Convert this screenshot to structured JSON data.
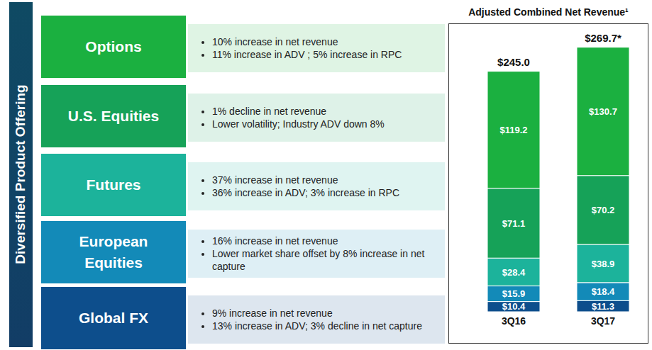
{
  "chart_data": {
    "type": "bar",
    "title": "Adjusted Combined Net Revenue¹",
    "categories": [
      "3Q16",
      "3Q17"
    ],
    "stacked": true,
    "data_labels": true,
    "grid": false,
    "tick_labels": "x",
    "ylim": [
      0,
      270
    ],
    "series": [
      {
        "name": "Global FX",
        "color": "#0d4e8c",
        "values": [
          10.4,
          11.3
        ],
        "value_labels": [
          "$10.4",
          "$11.3"
        ]
      },
      {
        "name": "European Equities",
        "color": "#138ab8",
        "values": [
          15.9,
          18.4
        ],
        "value_labels": [
          "$15.9",
          "$18.4"
        ]
      },
      {
        "name": "Futures",
        "color": "#1cb39b",
        "values": [
          28.4,
          38.9
        ],
        "value_labels": [
          "$28.4",
          "$38.9"
        ]
      },
      {
        "name": "U.S. Equities",
        "color": "#16a258",
        "values": [
          71.1,
          70.2
        ],
        "value_labels": [
          "$71.1",
          "$70.2"
        ]
      },
      {
        "name": "Options",
        "color": "#1bb040",
        "values": [
          119.2,
          130.7
        ],
        "value_labels": [
          "$119.2",
          "$130.7"
        ]
      }
    ],
    "total_labels": [
      "$245.0",
      "$269.7*"
    ]
  },
  "side_label": "Diversified Product Offering",
  "product_notes": {
    "Options": [
      "10% increase in net revenue",
      "11% increase in ADV ; 5% increase in RPC"
    ],
    "U.S. Equities": [
      "1% decline in net revenue",
      "Lower volatility; Industry ADV down 8%"
    ],
    "Futures": [
      "37% increase in net revenue",
      "36% increase in ADV; 3% increase in RPC"
    ],
    "European Equities": [
      "16% increase in net revenue",
      "Lower market share offset by 8% increase in net capture"
    ],
    "Global FX": [
      "9% increase in net revenue",
      "13% increase in ADV; 3% decline in net capture"
    ]
  }
}
